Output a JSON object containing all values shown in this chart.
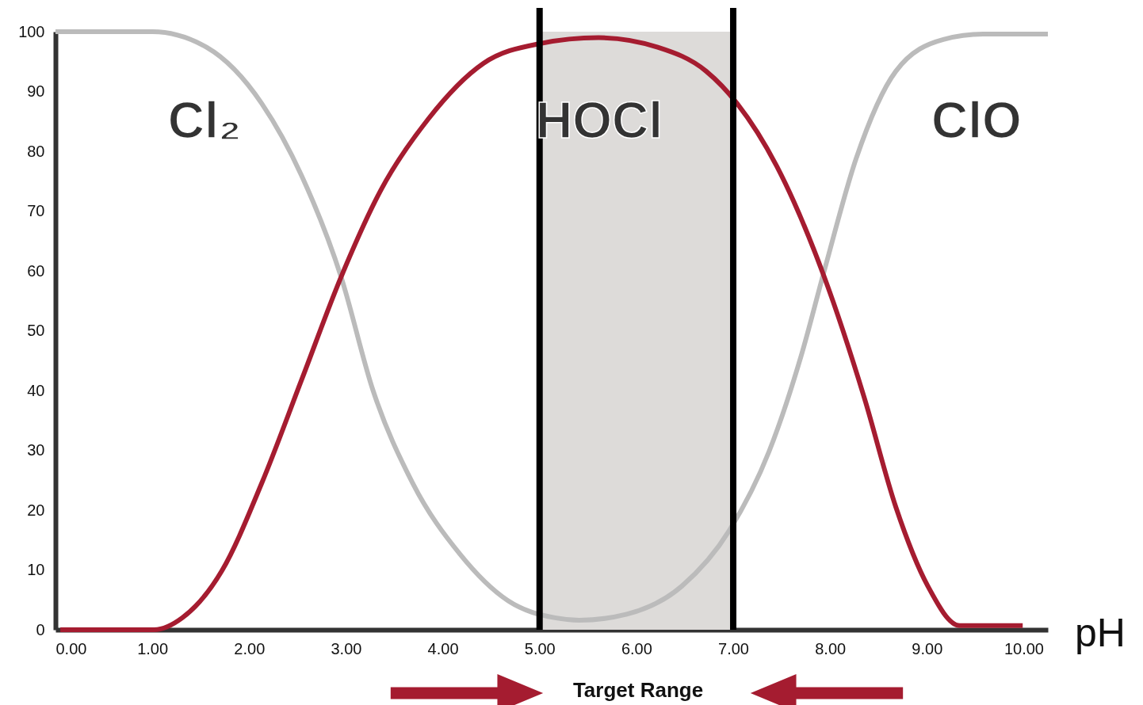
{
  "chart_data": {
    "type": "line",
    "xlabel": "pH",
    "xlim": [
      0,
      10.25
    ],
    "ylim": [
      0,
      100
    ],
    "xticks": [
      {
        "value": 0,
        "label": "0.00"
      },
      {
        "value": 1,
        "label": "1.00"
      },
      {
        "value": 2,
        "label": "2.00"
      },
      {
        "value": 3,
        "label": "3.00"
      },
      {
        "value": 4,
        "label": "4.00"
      },
      {
        "value": 5,
        "label": "5.00"
      },
      {
        "value": 6,
        "label": "6.00"
      },
      {
        "value": 7,
        "label": "7.00"
      },
      {
        "value": 8,
        "label": "8.00"
      },
      {
        "value": 9,
        "label": "9.00"
      },
      {
        "value": 10,
        "label": "10.00"
      }
    ],
    "yticks": [
      0,
      10,
      20,
      30,
      40,
      50,
      60,
      70,
      80,
      90,
      100
    ],
    "marker": "none",
    "line_style": "solid",
    "bands": [
      {
        "axis": "x",
        "from": 5,
        "to": 7,
        "color": "#dddbd9"
      }
    ],
    "ref_lines": [
      {
        "axis": "x",
        "value": 5,
        "color": "#000000"
      },
      {
        "axis": "x",
        "value": 7,
        "color": "#000000"
      }
    ],
    "series": [
      {
        "color": "#bbbbbb",
        "x": [
          0,
          1.0,
          1.56,
          2.13,
          2.54,
          2.95,
          3.28,
          3.69,
          4.18,
          4.67,
          5.16,
          5.41,
          5.9,
          6.47,
          6.96,
          7.37,
          7.7,
          7.94,
          8.27,
          8.68,
          9.17,
          9.58,
          10.25
        ],
        "values": [
          100,
          100,
          97.4,
          88,
          76,
          59,
          40,
          24.5,
          12.6,
          4.9,
          2,
          1.6,
          2.6,
          7.3,
          16.6,
          29.8,
          45.7,
          60,
          78.8,
          93.4,
          98.7,
          99.6,
          99.6
        ]
      },
      {
        "color": "#a51c30",
        "x": [
          0.05,
          1.02,
          1.31,
          1.72,
          2.13,
          2.54,
          2.95,
          3.36,
          3.85,
          4.42,
          5.0,
          5.61,
          6.22,
          6.72,
          7.04,
          7.45,
          7.94,
          8.35,
          8.68,
          9.01,
          9.34,
          9.99
        ],
        "values": [
          0,
          0,
          2,
          9.9,
          24.5,
          41.7,
          59,
          73.5,
          85.4,
          94.7,
          98,
          99,
          97.4,
          93.4,
          88,
          77.5,
          59,
          39,
          20.5,
          7.3,
          0.7,
          0.7
        ]
      }
    ],
    "annotations": [
      "Cl₂",
      "HOCl",
      "ClO",
      "Target Range"
    ]
  }
}
